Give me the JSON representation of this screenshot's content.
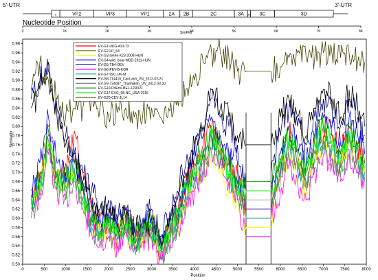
{
  "genome_map": {
    "utr5": "5'-UTR",
    "utr3": "3'-UTR",
    "segments": [
      {
        "name": "",
        "start": 0,
        "end": 680,
        "kind": "utr"
      },
      {
        "name": "L",
        "start": 680,
        "end": 880,
        "kind": "gene"
      },
      {
        "name": "VP2",
        "start": 880,
        "end": 1680,
        "kind": "gene"
      },
      {
        "name": "VP3",
        "start": 1680,
        "end": 2460,
        "kind": "gene"
      },
      {
        "name": "VP1",
        "start": 2460,
        "end": 3330,
        "kind": "gene"
      },
      {
        "name": "2A",
        "start": 3330,
        "end": 3720,
        "kind": "gene"
      },
      {
        "name": "2B",
        "start": 3720,
        "end": 4020,
        "kind": "gene"
      },
      {
        "name": "2C",
        "start": 4020,
        "end": 5010,
        "kind": "gene"
      },
      {
        "name": "3A",
        "start": 5010,
        "end": 5320,
        "kind": "gene"
      },
      {
        "name": "3B",
        "start": 5320,
        "end": 5390,
        "kind": "gene"
      },
      {
        "name": "3C",
        "start": 5390,
        "end": 5960,
        "kind": "gene"
      },
      {
        "name": "3D",
        "start": 5960,
        "end": 7350,
        "kind": "gene"
      },
      {
        "name": "",
        "start": 7350,
        "end": 7700,
        "kind": "utr"
      }
    ],
    "nucleotide_label": "Nucleotide Position",
    "ruler_ticks": [
      "0",
      "1K",
      "2K",
      "3K",
      "4K",
      "5K",
      "6K",
      "7K",
      "8K"
    ],
    "simplot_label": "SimPlot"
  },
  "chart_data": {
    "type": "line",
    "xlabel": "Position",
    "ylabel": "Similarity",
    "xlim": [
      0,
      8000
    ],
    "ylim": [
      0.5,
      0.99
    ],
    "x_ticks": [
      0,
      500,
      1000,
      1500,
      2000,
      2500,
      3000,
      3500,
      4000,
      4500,
      5000,
      5500,
      6000,
      6500,
      7000,
      7500,
      8000
    ],
    "y_ticks": [
      0.5,
      0.52,
      0.54,
      0.56,
      0.58,
      0.6,
      0.62,
      0.64,
      0.66,
      0.68,
      0.7,
      0.72,
      0.74,
      0.76,
      0.78,
      0.8,
      0.82,
      0.84,
      0.86,
      0.88,
      0.9,
      0.92,
      0.94,
      0.96,
      0.98
    ],
    "legend_position": "top-left",
    "gap_region": [
      5200,
      5780
    ],
    "x": [
      200,
      400,
      600,
      800,
      1000,
      1200,
      1400,
      1600,
      1800,
      2000,
      2200,
      2400,
      2600,
      2800,
      3000,
      3200,
      3400,
      3600,
      3800,
      4000,
      4200,
      4400,
      4600,
      4800,
      5000,
      5200,
      5780,
      6000,
      6200,
      6400,
      6600,
      6800,
      7000,
      7200,
      7400,
      7600,
      7800,
      7960
    ],
    "series": [
      {
        "name": "EV-G1-UKG-410-73",
        "color": "#ff0000",
        "values": [
          0.64,
          0.7,
          0.78,
          0.66,
          0.72,
          0.79,
          0.7,
          0.62,
          0.6,
          0.58,
          0.56,
          0.6,
          0.55,
          0.57,
          0.58,
          0.52,
          0.56,
          0.62,
          0.68,
          0.72,
          0.76,
          0.8,
          0.75,
          0.72,
          0.7,
          0.62,
          0.64,
          0.72,
          0.79,
          0.74,
          0.7,
          0.76,
          0.8,
          0.78,
          0.74,
          0.8,
          0.76,
          0.72
        ]
      },
      {
        "name": "EV-G2-LP_54",
        "color": "#707000",
        "values": [
          0.66,
          0.68,
          0.8,
          0.7,
          0.68,
          0.72,
          0.66,
          0.6,
          0.58,
          0.6,
          0.57,
          0.62,
          0.56,
          0.58,
          0.6,
          0.54,
          0.58,
          0.6,
          0.66,
          0.7,
          0.74,
          0.78,
          0.76,
          0.7,
          0.68,
          0.6,
          0.62,
          0.7,
          0.76,
          0.72,
          0.68,
          0.74,
          0.78,
          0.76,
          0.72,
          0.78,
          0.74,
          0.7
        ]
      },
      {
        "name": "EV-G3-swine-K23-2008-HUN",
        "color": "#ffff00",
        "values": [
          0.62,
          0.66,
          0.76,
          0.68,
          0.66,
          0.7,
          0.62,
          0.58,
          0.56,
          0.57,
          0.55,
          0.58,
          0.54,
          0.56,
          0.57,
          0.52,
          0.55,
          0.58,
          0.64,
          0.68,
          0.7,
          0.74,
          0.7,
          0.66,
          0.64,
          0.58,
          0.6,
          0.68,
          0.74,
          0.7,
          0.66,
          0.72,
          0.76,
          0.74,
          0.7,
          0.76,
          0.72,
          0.7
        ]
      },
      {
        "name": "EV-G4-wild_boar-WBD-2011-HUN",
        "color": "#0000ff",
        "values": [
          0.65,
          0.72,
          0.82,
          0.72,
          0.7,
          0.74,
          0.68,
          0.62,
          0.6,
          0.61,
          0.58,
          0.62,
          0.57,
          0.58,
          0.6,
          0.55,
          0.58,
          0.62,
          0.68,
          0.74,
          0.78,
          0.82,
          0.78,
          0.74,
          0.72,
          0.62,
          0.66,
          0.74,
          0.8,
          0.76,
          0.72,
          0.78,
          0.82,
          0.8,
          0.76,
          0.82,
          0.78,
          0.74
        ]
      },
      {
        "name": "EV-G5-TB4-OEV",
        "color": "#000080",
        "values": [
          0.86,
          0.9,
          0.92,
          0.84,
          0.78,
          0.74,
          0.7,
          0.66,
          0.62,
          0.64,
          0.6,
          0.62,
          0.58,
          0.6,
          0.62,
          0.56,
          0.6,
          0.66,
          0.72,
          0.76,
          0.8,
          0.86,
          0.82,
          0.8,
          0.76,
          0.66,
          0.7,
          0.78,
          0.84,
          0.8,
          0.76,
          0.82,
          0.86,
          0.84,
          0.8,
          0.86,
          0.82,
          0.78
        ]
      },
      {
        "name": "EV-G6-PEV-B-KOR",
        "color": "#ff00ff",
        "values": [
          0.6,
          0.64,
          0.74,
          0.66,
          0.64,
          0.68,
          0.62,
          0.57,
          0.55,
          0.56,
          0.54,
          0.57,
          0.53,
          0.55,
          0.56,
          0.51,
          0.54,
          0.57,
          0.62,
          0.66,
          0.7,
          0.74,
          0.72,
          0.68,
          0.64,
          0.56,
          0.6,
          0.66,
          0.72,
          0.68,
          0.64,
          0.7,
          0.74,
          0.72,
          0.68,
          0.74,
          0.7,
          0.68
        ]
      },
      {
        "name": "EV-G7-990_UK-M",
        "color": "#00a0a0",
        "values": [
          0.63,
          0.67,
          0.77,
          0.69,
          0.67,
          0.71,
          0.64,
          0.59,
          0.57,
          0.58,
          0.56,
          0.59,
          0.55,
          0.57,
          0.58,
          0.53,
          0.56,
          0.59,
          0.65,
          0.69,
          0.72,
          0.77,
          0.74,
          0.7,
          0.66,
          0.6,
          0.62,
          0.7,
          0.76,
          0.72,
          0.68,
          0.73,
          0.77,
          0.75,
          0.71,
          0.77,
          0.73,
          0.7
        ]
      },
      {
        "name": "EV-G8-714418_CaoLanh_VN_2012-02-21",
        "color": "#000000",
        "values": [
          0.84,
          0.88,
          0.94,
          0.82,
          0.76,
          0.72,
          0.68,
          0.64,
          0.62,
          0.62,
          0.6,
          0.6,
          0.58,
          0.58,
          0.6,
          0.56,
          0.58,
          0.64,
          0.7,
          0.76,
          0.8,
          0.88,
          0.84,
          0.82,
          0.78,
          0.76,
          0.76,
          0.82,
          0.86,
          0.82,
          0.78,
          0.84,
          0.88,
          0.86,
          0.82,
          0.88,
          0.84,
          0.8
        ]
      },
      {
        "name": "EV-G9-734087_ThanhBinh_VN_2012-03-20",
        "color": "#808080",
        "values": [
          0.61,
          0.65,
          0.75,
          0.67,
          0.65,
          0.69,
          0.63,
          0.58,
          0.56,
          0.57,
          0.55,
          0.58,
          0.54,
          0.56,
          0.57,
          0.52,
          0.55,
          0.58,
          0.63,
          0.67,
          0.71,
          0.75,
          0.73,
          0.69,
          0.65,
          0.64,
          0.64,
          0.68,
          0.74,
          0.7,
          0.66,
          0.71,
          0.75,
          0.73,
          0.69,
          0.75,
          0.71,
          0.69
        ]
      },
      {
        "name": "EV-G10-PoEnV-BEL-12R021",
        "color": "#008000",
        "values": [
          0.64,
          0.69,
          0.79,
          0.7,
          0.68,
          0.72,
          0.66,
          0.6,
          0.58,
          0.59,
          0.57,
          0.6,
          0.56,
          0.57,
          0.59,
          0.54,
          0.57,
          0.61,
          0.67,
          0.71,
          0.75,
          0.79,
          0.76,
          0.72,
          0.68,
          0.68,
          0.68,
          0.73,
          0.79,
          0.75,
          0.71,
          0.77,
          0.8,
          0.78,
          0.74,
          0.8,
          0.76,
          0.72
        ]
      },
      {
        "name": "EV-G17-EVG_08-NC_USA-2015",
        "color": "#00ff00",
        "values": [
          0.62,
          0.66,
          0.76,
          0.68,
          0.66,
          0.7,
          0.64,
          0.59,
          0.57,
          0.58,
          0.56,
          0.59,
          0.55,
          0.57,
          0.58,
          0.53,
          0.56,
          0.6,
          0.66,
          0.7,
          0.74,
          0.78,
          0.74,
          0.7,
          0.67,
          0.66,
          0.66,
          0.72,
          0.78,
          0.74,
          0.7,
          0.76,
          0.79,
          0.77,
          0.73,
          0.79,
          0.75,
          0.71
        ]
      },
      {
        "name": "EV-G20-CEV-JL14",
        "color": "#404000",
        "values": [
          0.88,
          0.94,
          0.9,
          0.86,
          0.82,
          0.84,
          0.84,
          0.86,
          0.84,
          0.82,
          0.83,
          0.84,
          0.82,
          0.83,
          0.84,
          0.82,
          0.84,
          0.86,
          0.88,
          0.9,
          0.94,
          0.96,
          0.96,
          0.95,
          0.92,
          0.92,
          0.92,
          0.93,
          0.95,
          0.96,
          0.95,
          0.95,
          0.96,
          0.96,
          0.95,
          0.96,
          0.94,
          0.94
        ]
      }
    ]
  }
}
